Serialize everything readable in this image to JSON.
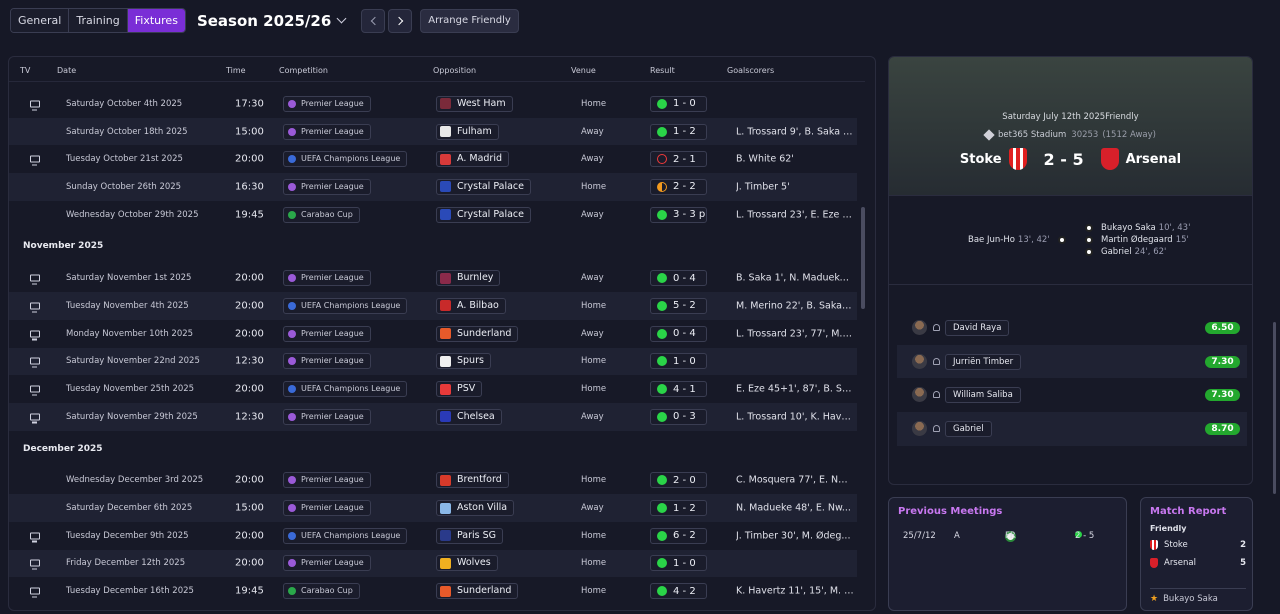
{
  "toolbar": {
    "tabs": [
      "General",
      "Training",
      "Fixtures"
    ],
    "season": "Season 2025/26",
    "arrange_label": "Arrange Friendly"
  },
  "table": {
    "headers": {
      "tv": "TV",
      "date": "Date",
      "time": "Time",
      "competition": "Competition",
      "opposition": "Opposition",
      "venue": "Venue",
      "result": "Result",
      "goalscorers": "Goalscorers"
    },
    "months": [
      "November 2025",
      "December 2025"
    ],
    "rows": [
      {
        "tv": true,
        "date": "Saturday October 4th 2025",
        "time": "17:30",
        "comp": "Premier League",
        "opp": "West Ham",
        "venue": "Home",
        "result": "1 - 0",
        "outcome": "w",
        "scorers": ""
      },
      {
        "tv": false,
        "date": "Saturday October 18th 2025",
        "time": "15:00",
        "comp": "Premier League",
        "opp": "Fulham",
        "venue": "Away",
        "result": "1 - 2",
        "outcome": "w",
        "scorers": "L. Trossard 9', B. Saka 5..."
      },
      {
        "tv": true,
        "date": "Tuesday October 21st 2025",
        "time": "20:00",
        "comp": "UEFA Champions League",
        "opp": "A. Madrid",
        "venue": "Away",
        "result": "2 - 1",
        "outcome": "l",
        "scorers": "B. White 62'"
      },
      {
        "tv": false,
        "date": "Sunday October 26th 2025",
        "time": "16:30",
        "comp": "Premier League",
        "opp": "Crystal Palace",
        "venue": "Home",
        "result": "2 - 2",
        "outcome": "d",
        "scorers": "J. Timber 5'"
      },
      {
        "tv": false,
        "date": "Wednesday October 29th 2025",
        "time": "19:45",
        "comp": "Carabao Cup",
        "opp": "Crystal Palace",
        "venue": "Away",
        "result": "3 - 3 p",
        "outcome": "w",
        "scorers": "L. Trossard 23', E. Eze 3..."
      },
      {
        "tv": true,
        "date": "Saturday November 1st 2025",
        "time": "20:00",
        "comp": "Premier League",
        "opp": "Burnley",
        "venue": "Away",
        "result": "0 - 4",
        "outcome": "w",
        "scorers": "B. Saka 1', N. Madueke ..."
      },
      {
        "tv": true,
        "date": "Tuesday November 4th 2025",
        "time": "20:00",
        "comp": "UEFA Champions League",
        "opp": "A. Bilbao",
        "venue": "Home",
        "result": "5 - 2",
        "outcome": "w",
        "scorers": "M. Merino 22', B. Saka ..."
      },
      {
        "tv": true,
        "date": "Monday November 10th 2025",
        "time": "20:00",
        "comp": "Premier League",
        "opp": "Sunderland",
        "venue": "Away",
        "result": "0 - 4",
        "outcome": "w",
        "scorers": "L. Trossard 23', 77', M. ..."
      },
      {
        "tv": true,
        "date": "Saturday November 22nd 2025",
        "time": "12:30",
        "comp": "Premier League",
        "opp": "Spurs",
        "venue": "Home",
        "result": "1 - 0",
        "outcome": "w",
        "scorers": ""
      },
      {
        "tv": true,
        "date": "Tuesday November 25th 2025",
        "time": "20:00",
        "comp": "UEFA Champions League",
        "opp": "PSV",
        "venue": "Home",
        "result": "4 - 1",
        "outcome": "w",
        "scorers": "E. Eze 45+1', 87', B. Sak..."
      },
      {
        "tv": true,
        "date": "Saturday November 29th 2025",
        "time": "12:30",
        "comp": "Premier League",
        "opp": "Chelsea",
        "venue": "Away",
        "result": "0 - 3",
        "outcome": "w",
        "scorers": "L. Trossard 10', K. Have..."
      },
      {
        "tv": false,
        "date": "Wednesday December 3rd 2025",
        "time": "20:00",
        "comp": "Premier League",
        "opp": "Brentford",
        "venue": "Home",
        "result": "2 - 0",
        "outcome": "w",
        "scorers": "C. Mosquera 77', E. Nw..."
      },
      {
        "tv": false,
        "date": "Saturday December 6th 2025",
        "time": "15:00",
        "comp": "Premier League",
        "opp": "Aston Villa",
        "venue": "Away",
        "result": "1 - 2",
        "outcome": "w",
        "scorers": "N. Madueke 48', E. Nw..."
      },
      {
        "tv": true,
        "date": "Tuesday December 9th 2025",
        "time": "20:00",
        "comp": "UEFA Champions League",
        "opp": "Paris SG",
        "venue": "Home",
        "result": "6 - 2",
        "outcome": "w",
        "scorers": "J. Timber 30', M. Ødeg..."
      },
      {
        "tv": true,
        "date": "Friday December 12th 2025",
        "time": "20:00",
        "comp": "Premier League",
        "opp": "Wolves",
        "venue": "Home",
        "result": "1 - 0",
        "outcome": "w",
        "scorers": ""
      },
      {
        "tv": true,
        "date": "Tuesday December 16th 2025",
        "time": "19:45",
        "comp": "Carabao Cup",
        "opp": "Sunderland",
        "venue": "Home",
        "result": "4 - 2",
        "outcome": "w",
        "scorers": "K. Havertz 11', 15', M. Ød..."
      }
    ]
  },
  "match": {
    "date": "Saturday July 12th 2025",
    "competition": "Friendly",
    "stadium": "bet365 Stadium",
    "attendance": "30253",
    "away_attendance": "(1512 Away)",
    "home": "Stoke",
    "away": "Arsenal",
    "score": "2 - 5",
    "home_goals": [
      {
        "name": "Bae Jun-Ho",
        "mins": "13', 42'"
      }
    ],
    "away_goals": [
      {
        "name": "Bukayo Saka",
        "mins": "10', 43'"
      },
      {
        "name": "Martin Ødegaard",
        "mins": "15'"
      },
      {
        "name": "Gabriel",
        "mins": "24', 62'"
      }
    ],
    "players": [
      {
        "name": "David Raya",
        "rating": "6.50"
      },
      {
        "name": "Jurriën Timber",
        "rating": "7.30"
      },
      {
        "name": "William Saliba",
        "rating": "7.30"
      },
      {
        "name": "Gabriel",
        "rating": "8.70"
      }
    ]
  },
  "previous_meetings": {
    "title": "Previous Meetings",
    "date": "25/7/12",
    "venue": "A",
    "comp": "FR",
    "score": "2 - 5"
  },
  "match_report": {
    "title": "Match Report",
    "competition": "Friendly",
    "home": "Stoke",
    "home_score": "2",
    "away": "Arsenal",
    "away_score": "5",
    "motm": "Bukayo Saka"
  }
}
